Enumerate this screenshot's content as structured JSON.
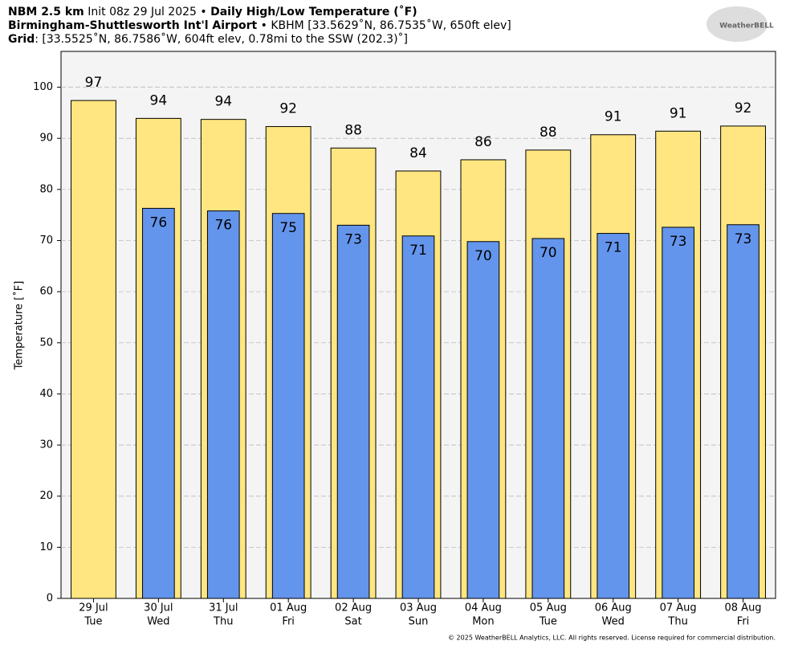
{
  "chart_data": {
    "type": "bar",
    "title_model": "NBM 2.5 km",
    "title_init": "Init 08z 29 Jul 2025 •",
    "title": "Daily High/Low Temperature (˚F)",
    "station_name": "Birmingham-Shuttlesworth Int'l Airport",
    "station_info": "• KBHM [33.5629˚N, 86.7535˚W, 650ft elev]",
    "grid_label": "Grid",
    "grid_info": ": [33.5525˚N, 86.7586˚W, 604ft elev, 0.78mi to the SSW (202.3)˚]",
    "logo": "WeatherBELL",
    "copyright": "© 2025 WeatherBELL Analytics, LLC. All rights reserved. License required for commercial distribution.",
    "y_label": "Temperature [˚F]",
    "categories": [
      "29 Jul",
      "30 Jul",
      "31 Jul",
      "01 Aug",
      "02 Aug",
      "03 Aug",
      "04 Aug",
      "05 Aug",
      "06 Aug",
      "07 Aug",
      "08 Aug"
    ],
    "weekdays": [
      "Tue",
      "Wed",
      "Thu",
      "Fri",
      "Sat",
      "Sun",
      "Mon",
      "Tue",
      "Wed",
      "Thu",
      "Fri"
    ],
    "series": [
      {
        "color": "#ffe680",
        "values": [
          97.4,
          93.9,
          93.7,
          92.3,
          88.1,
          83.6,
          85.8,
          87.7,
          90.7,
          91.4,
          92.4
        ],
        "value_labels": [
          "97",
          "94",
          "94",
          "92",
          "88",
          "84",
          "86",
          "88",
          "91",
          "91",
          "92"
        ]
      },
      {
        "color": "#6495ed",
        "values": [
          null,
          76.3,
          75.8,
          75.3,
          73.0,
          70.9,
          69.8,
          70.4,
          71.4,
          72.6,
          73.1
        ],
        "value_labels": [
          null,
          "76",
          "76",
          "75",
          "73",
          "71",
          "70",
          "70",
          "71",
          "73",
          "73"
        ]
      }
    ],
    "ylim": [
      0,
      107
    ],
    "yticks": [
      0,
      10,
      20,
      30,
      40,
      50,
      60,
      70,
      80,
      90,
      100
    ],
    "grid": true
  }
}
